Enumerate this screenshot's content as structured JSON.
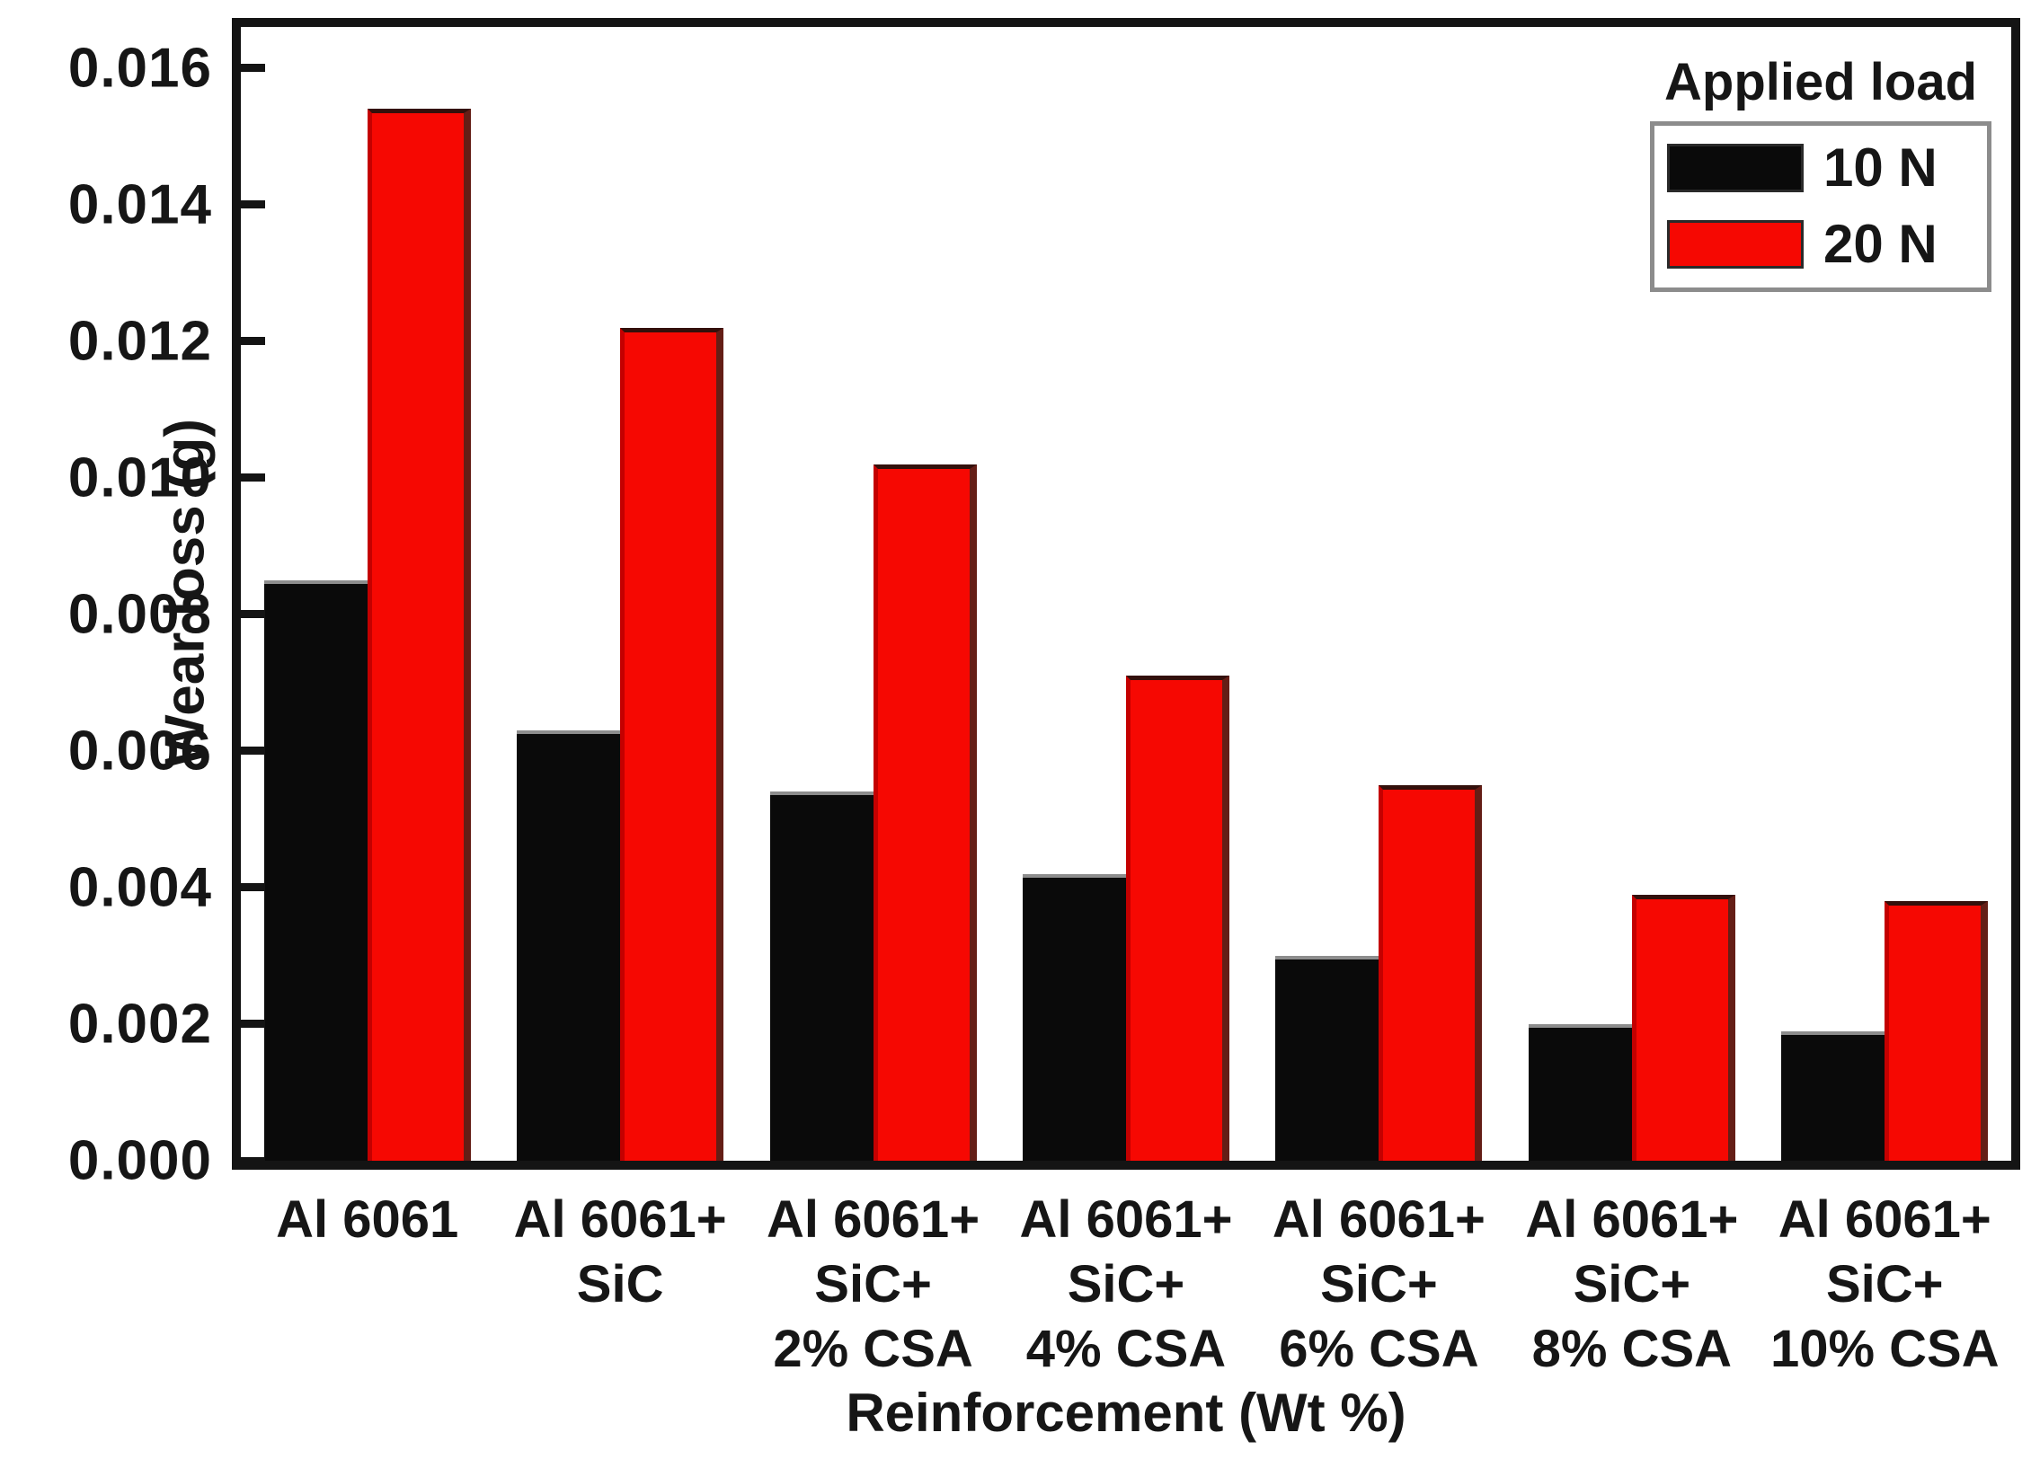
{
  "figure": {
    "background": "#ffffff",
    "frame_color": "#141414",
    "text_color": "#161616"
  },
  "chart_data": {
    "type": "bar",
    "title": "",
    "xlabel": "Reinforcement (Wt %)",
    "ylabel": "Wear loss (g)",
    "legend_title": "Applied load",
    "legend_position": "top-right",
    "grid": false,
    "categories": [
      "Al 6061",
      "Al 6061+ SiC",
      "Al 6061+ SiC+ 2% CSA",
      "Al 6061+ SiC+ 4% CSA",
      "Al 6061+ SiC+ 6% CSA",
      "Al 6061+ SiC+ 8% CSA",
      "Al 6061+ SiC+ 10% CSA"
    ],
    "categories_lines": [
      [
        "Al 6061"
      ],
      [
        "Al 6061+",
        "SiC"
      ],
      [
        "Al 6061+",
        "SiC+",
        "2% CSA"
      ],
      [
        "Al 6061+",
        "SiC+",
        "4% CSA"
      ],
      [
        "Al 6061+",
        "SiC+",
        "6% CSA"
      ],
      [
        "Al 6061+",
        "SiC+",
        "8% CSA"
      ],
      [
        "Al 6061+",
        "SiC+",
        "10% CSA"
      ]
    ],
    "series": [
      {
        "name": "10 N",
        "color": "#0a0a0a",
        "values": [
          0.0085,
          0.0063,
          0.0054,
          0.0042,
          0.003,
          0.002,
          0.0019
        ]
      },
      {
        "name": "20 N",
        "color": "#f60802",
        "values": [
          0.0154,
          0.0122,
          0.0102,
          0.0071,
          0.0055,
          0.0039,
          0.0038
        ]
      }
    ],
    "ylim": [
      0,
      0.0166
    ],
    "yticks": [
      0.0,
      0.002,
      0.004,
      0.006,
      0.008,
      0.01,
      0.012,
      0.014,
      0.016
    ],
    "ytick_labels": [
      "0.000",
      "0.002",
      "0.004",
      "0.006",
      "0.008",
      "0.010",
      "0.012",
      "0.014",
      "0.016"
    ]
  }
}
